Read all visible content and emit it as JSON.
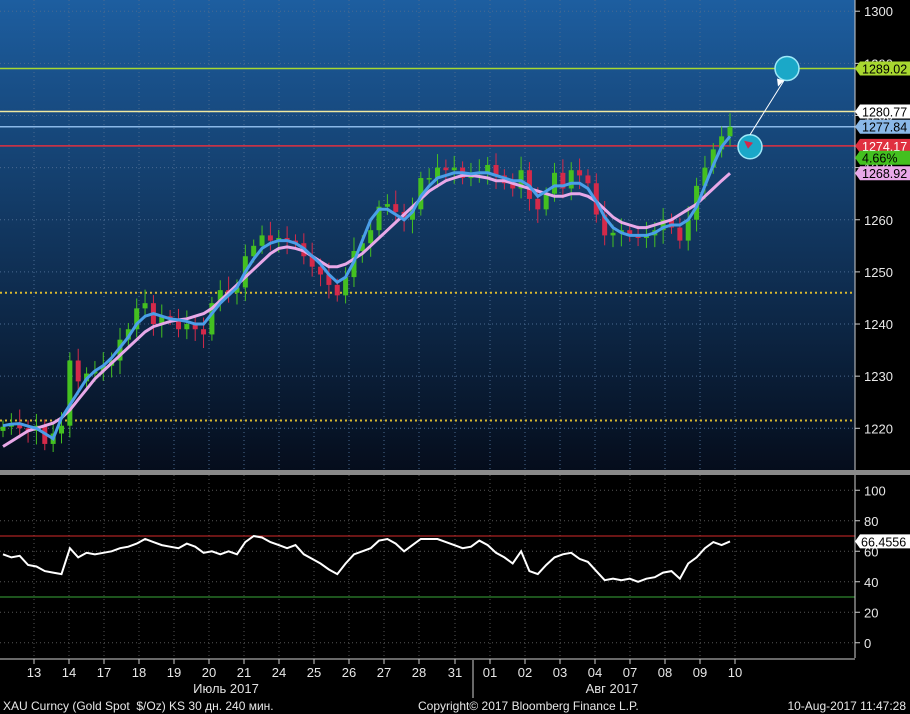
{
  "colors": {
    "price_bg_top": "#1d5ea0",
    "price_bg_bottom": "#050d1c",
    "ma_fast": "#4a9ee8",
    "ma_slow": "#e8a8e8",
    "candle_up": "#44c020",
    "candle_down": "#d42a4a",
    "rsi_line": "#ffffff",
    "rsi_upper": "#d42a2a",
    "rsi_lower": "#3aa83a",
    "hline_green": "#a8d830",
    "hline_red": "#e03040",
    "hline_blue": "#8ab8e8",
    "dotted_level": "#d8b830",
    "marker_fill": "#1aa8c8"
  },
  "footer": {
    "left": "XAU Curncy (Gold Spot  $/Oz) KS 30 дн. 240 мин.",
    "center": "Copyright© 2017 Bloomberg Finance L.P.",
    "right": "10-Aug-2017 11:47:28"
  },
  "price_axis": {
    "ticks": [
      "1300",
      "1290",
      "1280",
      "1270",
      "1260",
      "1250",
      "1240",
      "1230",
      "1220"
    ],
    "tags": [
      {
        "label": "1289.02",
        "value": 1289.02,
        "bg": "#a8d830",
        "fg": "#000000"
      },
      {
        "label": "1280.77",
        "value": 1280.77,
        "bg": "#ffffff",
        "fg": "#000000"
      },
      {
        "label": "1277.84",
        "value": 1277.84,
        "bg": "#8ab8e8",
        "fg": "#000000"
      },
      {
        "label": "1274.17",
        "value": 1274.17,
        "bg": "#e03040",
        "fg": "#ffffff"
      },
      {
        "label": "4.66%",
        "value": 1271.9,
        "bg": "#44c020",
        "fg": "#000000"
      },
      {
        "label": "1268.92",
        "value": 1268.92,
        "bg": "#e8a8e8",
        "fg": "#000000"
      }
    ]
  },
  "rsi_axis": {
    "ticks": [
      "100",
      "80",
      "60",
      "40",
      "20",
      "0"
    ],
    "tag": {
      "label": "66.4556",
      "value": 66.4556
    }
  },
  "x_axis": {
    "days": [
      "13",
      "14",
      "17",
      "18",
      "19",
      "20",
      "21",
      "24",
      "25",
      "26",
      "27",
      "28",
      "31",
      "01",
      "02",
      "03",
      "04",
      "07",
      "08",
      "09",
      "10"
    ],
    "months": [
      "Июль 2017",
      "Авг 2017"
    ]
  },
  "chart_data": {
    "type": "candlestick",
    "price_ylim": [
      1212,
      1301
    ],
    "rsi_ylim": [
      -10,
      110
    ],
    "horizontal_lines": [
      1289.02,
      1280.77,
      1277.84,
      1274.17,
      1246.0,
      1221.5
    ],
    "close": [
      1220.3,
      1221.0,
      1220.0,
      1219.5,
      1220.5,
      1217.0,
      1219.0,
      1220.5,
      1233.0,
      1229.0,
      1230.5,
      1231.0,
      1232.0,
      1233.0,
      1237.0,
      1239.0,
      1243.0,
      1244.0,
      1240.0,
      1241.5,
      1241.0,
      1239.0,
      1240.0,
      1239.0,
      1238.0,
      1244.0,
      1246.5,
      1246.0,
      1247.0,
      1253.0,
      1255.0,
      1257.0,
      1256.0,
      1256.5,
      1256.0,
      1255.5,
      1253.0,
      1251.0,
      1249.5,
      1247.5,
      1245.5,
      1249.0,
      1254.0,
      1255.5,
      1258.0,
      1262.5,
      1263.0,
      1261.5,
      1260.0,
      1262.0,
      1268.0,
      1268.0,
      1270.0,
      1269.5,
      1270.0,
      1268.0,
      1269.0,
      1269.0,
      1270.5,
      1268.5,
      1267.0,
      1266.0,
      1269.5,
      1264.0,
      1262.0,
      1265.0,
      1269.0,
      1266.0,
      1269.5,
      1268.5,
      1267.0,
      1261.0,
      1257.0,
      1257.5,
      1258.0,
      1257.0,
      1256.5,
      1257.0,
      1258.0,
      1260.0,
      1258.5,
      1256.0,
      1260.0,
      1266.5,
      1270.0,
      1273.5,
      1276.0,
      1277.84
    ],
    "ma_fast": [
      1220.5,
      1220.8,
      1220.9,
      1220.4,
      1220.0,
      1219.0,
      1218.0,
      1222.0,
      1224.5,
      1227.0,
      1229.5,
      1231.0,
      1232.0,
      1233.5,
      1235.5,
      1237.5,
      1240.0,
      1241.5,
      1242.0,
      1241.5,
      1241.0,
      1240.8,
      1240.5,
      1240.0,
      1240.0,
      1242.0,
      1244.0,
      1245.5,
      1247.0,
      1250.0,
      1252.5,
      1254.5,
      1255.5,
      1256.0,
      1256.0,
      1255.5,
      1254.5,
      1253.0,
      1251.5,
      1249.5,
      1248.0,
      1249.0,
      1252.0,
      1256.0,
      1260.0,
      1262.0,
      1262.0,
      1261.0,
      1260.0,
      1261.5,
      1264.5,
      1266.5,
      1268.0,
      1268.5,
      1269.0,
      1269.0,
      1268.8,
      1269.0,
      1269.0,
      1268.5,
      1268.0,
      1267.5,
      1267.5,
      1266.5,
      1264.5,
      1265.5,
      1266.5,
      1266.5,
      1267.0,
      1267.0,
      1266.0,
      1263.5,
      1260.5,
      1258.5,
      1257.5,
      1257.0,
      1257.0,
      1257.0,
      1257.5,
      1258.5,
      1259.0,
      1259.0,
      1260.0,
      1262.5,
      1266.5,
      1270.5,
      1274.0,
      1276.0
    ],
    "ma_slow": [
      1216.5,
      1217.5,
      1218.5,
      1219.5,
      1220.0,
      1220.5,
      1221.0,
      1222.0,
      1223.5,
      1225.5,
      1227.5,
      1229.5,
      1231.0,
      1232.5,
      1234.0,
      1235.5,
      1237.0,
      1238.5,
      1239.5,
      1240.0,
      1240.5,
      1240.8,
      1241.0,
      1241.5,
      1242.0,
      1243.0,
      1244.5,
      1246.0,
      1247.5,
      1249.0,
      1250.5,
      1252.0,
      1253.5,
      1254.5,
      1254.8,
      1254.5,
      1254.0,
      1253.0,
      1252.0,
      1251.0,
      1251.0,
      1251.5,
      1252.5,
      1253.5,
      1255.0,
      1256.5,
      1258.0,
      1259.5,
      1261.0,
      1262.5,
      1264.0,
      1265.5,
      1266.5,
      1267.5,
      1268.0,
      1268.5,
      1268.5,
      1268.3,
      1268.0,
      1267.5,
      1267.5,
      1267.0,
      1266.5,
      1266.0,
      1265.5,
      1265.0,
      1264.5,
      1264.5,
      1265.0,
      1265.0,
      1264.5,
      1263.5,
      1262.0,
      1260.5,
      1259.5,
      1259.0,
      1258.5,
      1258.5,
      1259.0,
      1259.5,
      1260.0,
      1261.0,
      1262.0,
      1263.0,
      1264.5,
      1266.0,
      1267.5,
      1268.92
    ],
    "rsi": [
      58,
      56,
      57,
      51,
      50,
      47,
      46,
      45,
      62,
      56,
      59,
      58,
      59,
      60,
      62,
      63,
      65,
      68,
      66,
      64,
      63,
      62,
      65,
      63,
      59,
      60,
      58,
      60,
      58,
      66,
      70,
      69,
      66,
      64,
      62,
      64,
      58,
      55,
      52,
      48,
      45,
      52,
      58,
      60,
      62,
      67,
      68,
      65,
      60,
      64,
      68,
      68,
      68,
      66,
      64,
      62,
      63,
      67,
      64,
      59,
      56,
      52,
      60,
      47,
      45,
      51,
      56,
      58,
      59,
      55,
      53,
      47,
      41,
      42,
      41,
      42,
      40,
      42,
      43,
      46,
      47,
      42,
      52,
      56,
      62,
      66,
      64,
      66.4556
    ],
    "rsi_levels": [
      70,
      30
    ],
    "arrow_markers": [
      {
        "from": 1274.0,
        "to": 1289.02
      }
    ]
  }
}
